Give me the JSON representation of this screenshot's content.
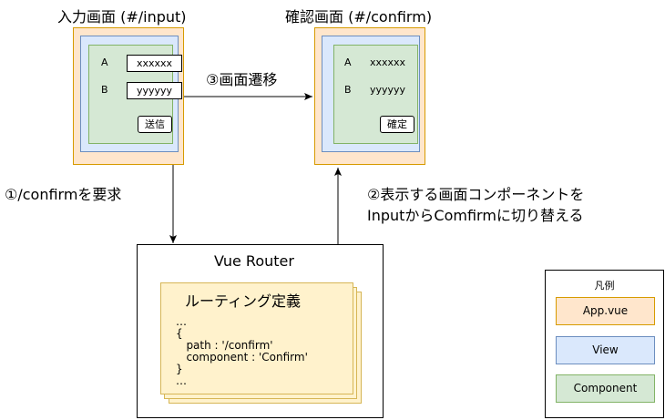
{
  "input_screen": {
    "title": "入力画面 (#/input)",
    "field_a_label": "A",
    "field_a_value": "xxxxxx",
    "field_b_label": "B",
    "field_b_value": "yyyyyy",
    "submit_label": "送信"
  },
  "confirm_screen": {
    "title": "確認画面 (#/confirm)",
    "field_a_label": "A",
    "field_a_value": "xxxxxx",
    "field_b_label": "B",
    "field_b_value": "yyyyyy",
    "confirm_label": "確定"
  },
  "steps": {
    "step1": "①/confirmを要求",
    "step2_line1": "②表示する画面コンポーネントを",
    "step2_line2": "InputからComfirmに切り替える",
    "step3": "③画面遷移"
  },
  "router": {
    "title": "Vue Router",
    "sheet_title": "ルーティング定義",
    "code": "…\n{\n   path : '/confirm'\n   component : 'Confirm'\n}\n…"
  },
  "legend": {
    "title": "凡例",
    "items": [
      "App.vue",
      "View",
      "Component"
    ]
  },
  "colors": {
    "app_fill": "#ffe6cc",
    "app_stroke": "#d79b00",
    "view_fill": "#dae8fc",
    "view_stroke": "#6c8ebf",
    "component_fill": "#d5e8d4",
    "component_stroke": "#82b366",
    "sheet_fill": "#fff2cc",
    "sheet_stroke": "#d6b656"
  }
}
